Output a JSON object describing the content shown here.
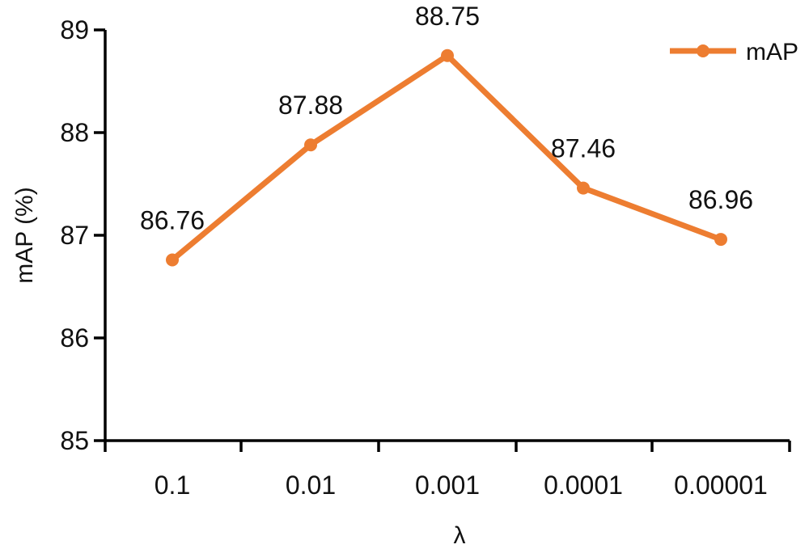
{
  "chart_data": {
    "type": "line",
    "categories": [
      "0.1",
      "0.01",
      "0.001",
      "0.0001",
      "0.00001"
    ],
    "series": [
      {
        "name": "mAP",
        "values": [
          86.76,
          87.88,
          88.75,
          87.46,
          86.96
        ],
        "color": "#ED7D31"
      }
    ],
    "data_labels": [
      "86.76",
      "87.88",
      "88.75",
      "87.46",
      "86.96"
    ],
    "xlabel": "λ",
    "ylabel": "mAP (%)",
    "ylim": [
      85,
      89
    ],
    "yticks": [
      "85",
      "86",
      "87",
      "88",
      "89"
    ],
    "grid": false,
    "legend_position": "top-right"
  }
}
